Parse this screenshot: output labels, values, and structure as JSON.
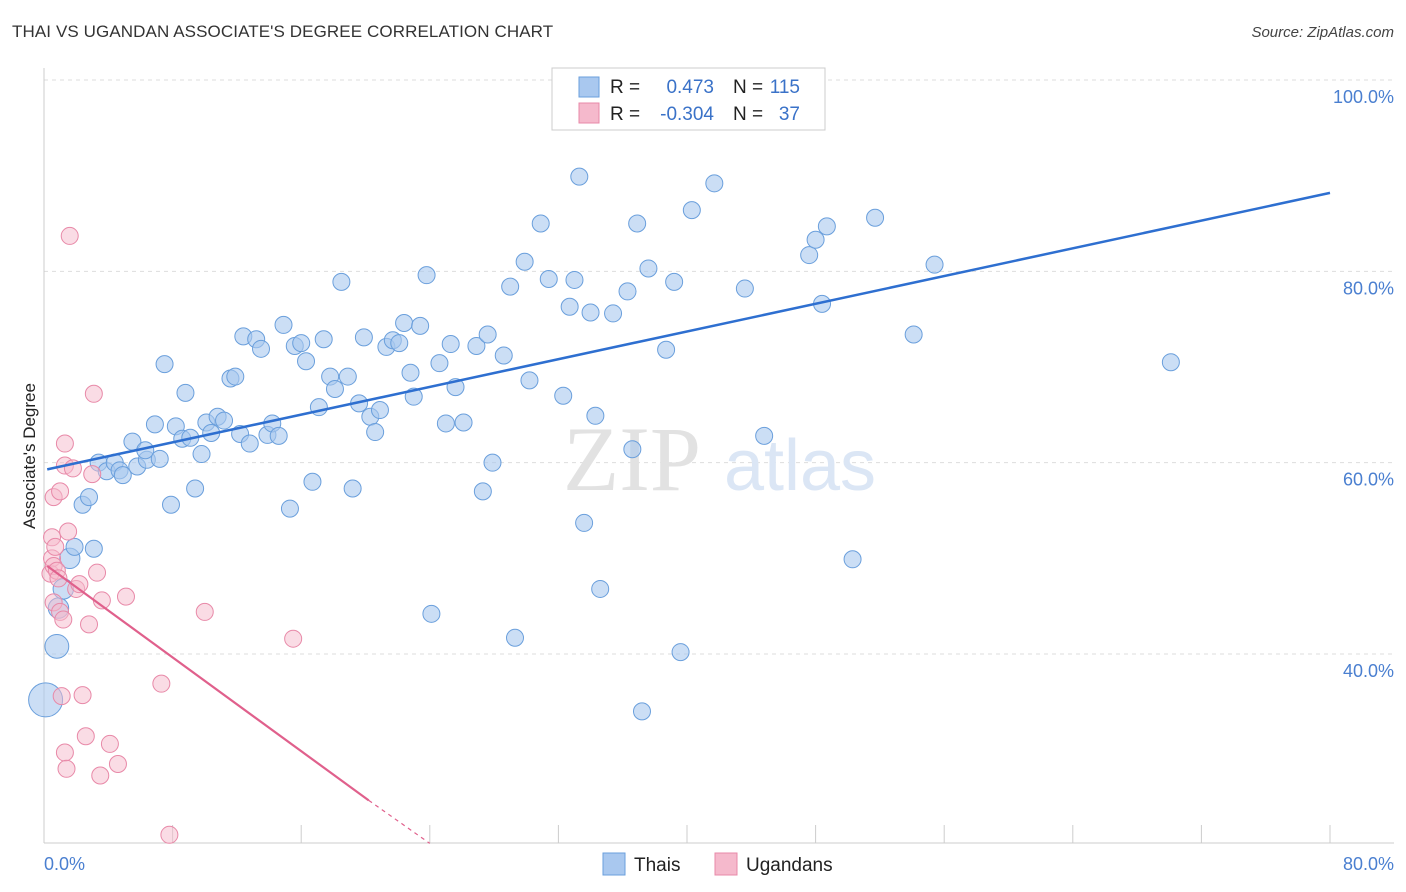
{
  "title": "THAI VS UGANDAN ASSOCIATE'S DEGREE CORRELATION CHART",
  "source": "Source: ZipAtlas.com",
  "watermark": {
    "zip": "ZIP",
    "atlas": "atlas"
  },
  "colors": {
    "thais_fill": "#a9c8ef",
    "thais_stroke": "#6a9fdc",
    "thais_line": "#2e6fd0",
    "ugandans_fill": "#f5b9cc",
    "ugandans_stroke": "#e889a8",
    "ugandans_line": "#e0608c",
    "grid": "#dddddd",
    "axis_label": "#4a7fd0"
  },
  "legend": {
    "row1": {
      "r_label": "R =",
      "r_value": "0.473",
      "n_label": "N =",
      "n_value": "115"
    },
    "row2": {
      "r_label": "R =",
      "r_value": "-0.304",
      "n_label": "N =",
      "n_value": "37"
    }
  },
  "bottom_legend": {
    "thais": "Thais",
    "ugandans": "Ugandans"
  },
  "chart_data": {
    "type": "scatter",
    "title": "THAI VS UGANDAN ASSOCIATE'S DEGREE CORRELATION CHART",
    "xlabel": "",
    "ylabel": "Associate's Degree",
    "xlim": [
      0,
      80
    ],
    "ylim": [
      21,
      102
    ],
    "x_tick_labels": {
      "left": "0.0%",
      "right": "80.0%"
    },
    "y_ticks": [
      {
        "value": 100,
        "label": "100.0%"
      },
      {
        "value": 80,
        "label": "80.0%"
      },
      {
        "value": 60,
        "label": "60.0%"
      },
      {
        "value": 40,
        "label": "40.0%"
      }
    ],
    "series": [
      {
        "name": "Thais",
        "r": 0.473,
        "n": 115,
        "trend": {
          "x": [
            0.2,
            80
          ],
          "y": [
            59.3,
            88.2
          ]
        },
        "points": [
          {
            "x": 0.1,
            "y": 35.2,
            "s": 20
          },
          {
            "x": 0.8,
            "y": 40.8,
            "s": 14
          },
          {
            "x": 0.9,
            "y": 44.8,
            "s": 12
          },
          {
            "x": 1.2,
            "y": 46.8,
            "s": 12
          },
          {
            "x": 1.6,
            "y": 50.0,
            "s": 12
          },
          {
            "x": 1.9,
            "y": 51.2,
            "s": 10
          },
          {
            "x": 3.1,
            "y": 51.0,
            "s": 10
          },
          {
            "x": 2.4,
            "y": 55.6,
            "s": 10
          },
          {
            "x": 2.8,
            "y": 56.4,
            "s": 10
          },
          {
            "x": 3.4,
            "y": 60.0,
            "s": 10
          },
          {
            "x": 3.9,
            "y": 59.1,
            "s": 10
          },
          {
            "x": 4.4,
            "y": 60.0,
            "s": 10
          },
          {
            "x": 4.7,
            "y": 59.2,
            "s": 10
          },
          {
            "x": 4.9,
            "y": 58.7,
            "s": 10
          },
          {
            "x": 5.8,
            "y": 59.6,
            "s": 10
          },
          {
            "x": 6.4,
            "y": 60.3,
            "s": 10
          },
          {
            "x": 5.5,
            "y": 62.2,
            "s": 10
          },
          {
            "x": 6.3,
            "y": 61.3,
            "s": 10
          },
          {
            "x": 6.9,
            "y": 64.0,
            "s": 10
          },
          {
            "x": 7.2,
            "y": 60.4,
            "s": 10
          },
          {
            "x": 7.5,
            "y": 70.3,
            "s": 10
          },
          {
            "x": 7.9,
            "y": 55.6,
            "s": 10
          },
          {
            "x": 8.2,
            "y": 63.8,
            "s": 10
          },
          {
            "x": 8.6,
            "y": 62.5,
            "s": 10
          },
          {
            "x": 8.8,
            "y": 67.3,
            "s": 10
          },
          {
            "x": 9.1,
            "y": 62.6,
            "s": 10
          },
          {
            "x": 9.4,
            "y": 57.3,
            "s": 10
          },
          {
            "x": 9.8,
            "y": 60.9,
            "s": 10
          },
          {
            "x": 10.1,
            "y": 64.2,
            "s": 10
          },
          {
            "x": 10.4,
            "y": 63.1,
            "s": 10
          },
          {
            "x": 10.8,
            "y": 64.8,
            "s": 10
          },
          {
            "x": 11.2,
            "y": 64.4,
            "s": 10
          },
          {
            "x": 11.6,
            "y": 68.8,
            "s": 10
          },
          {
            "x": 11.9,
            "y": 69.0,
            "s": 10
          },
          {
            "x": 12.2,
            "y": 63.0,
            "s": 10
          },
          {
            "x": 12.4,
            "y": 73.2,
            "s": 10
          },
          {
            "x": 12.8,
            "y": 62.0,
            "s": 10
          },
          {
            "x": 13.2,
            "y": 72.9,
            "s": 10
          },
          {
            "x": 13.5,
            "y": 71.9,
            "s": 10
          },
          {
            "x": 13.9,
            "y": 62.9,
            "s": 10
          },
          {
            "x": 14.2,
            "y": 64.1,
            "s": 10
          },
          {
            "x": 14.6,
            "y": 62.8,
            "s": 10
          },
          {
            "x": 14.9,
            "y": 74.4,
            "s": 10
          },
          {
            "x": 15.3,
            "y": 55.2,
            "s": 10
          },
          {
            "x": 15.6,
            "y": 72.2,
            "s": 10
          },
          {
            "x": 16.0,
            "y": 72.5,
            "s": 10
          },
          {
            "x": 16.3,
            "y": 70.6,
            "s": 10
          },
          {
            "x": 16.7,
            "y": 58.0,
            "s": 10
          },
          {
            "x": 17.1,
            "y": 65.8,
            "s": 10
          },
          {
            "x": 17.4,
            "y": 72.9,
            "s": 10
          },
          {
            "x": 17.8,
            "y": 69.0,
            "s": 10
          },
          {
            "x": 18.1,
            "y": 67.7,
            "s": 10
          },
          {
            "x": 18.5,
            "y": 78.9,
            "s": 10
          },
          {
            "x": 18.9,
            "y": 69.0,
            "s": 10
          },
          {
            "x": 19.2,
            "y": 57.3,
            "s": 10
          },
          {
            "x": 19.6,
            "y": 66.2,
            "s": 10
          },
          {
            "x": 19.9,
            "y": 73.1,
            "s": 10
          },
          {
            "x": 20.3,
            "y": 64.8,
            "s": 10
          },
          {
            "x": 20.6,
            "y": 63.2,
            "s": 10
          },
          {
            "x": 20.9,
            "y": 65.5,
            "s": 10
          },
          {
            "x": 21.3,
            "y": 72.1,
            "s": 10
          },
          {
            "x": 21.7,
            "y": 72.8,
            "s": 10
          },
          {
            "x": 22.1,
            "y": 72.5,
            "s": 10
          },
          {
            "x": 22.4,
            "y": 74.6,
            "s": 10
          },
          {
            "x": 22.8,
            "y": 69.4,
            "s": 10
          },
          {
            "x": 23.0,
            "y": 66.9,
            "s": 10
          },
          {
            "x": 23.4,
            "y": 74.3,
            "s": 10
          },
          {
            "x": 23.8,
            "y": 79.6,
            "s": 10
          },
          {
            "x": 24.1,
            "y": 44.2,
            "s": 10
          },
          {
            "x": 24.6,
            "y": 70.4,
            "s": 10
          },
          {
            "x": 25.0,
            "y": 64.1,
            "s": 10
          },
          {
            "x": 25.3,
            "y": 72.4,
            "s": 10
          },
          {
            "x": 25.6,
            "y": 67.9,
            "s": 10
          },
          {
            "x": 26.1,
            "y": 64.2,
            "s": 10
          },
          {
            "x": 26.9,
            "y": 72.2,
            "s": 10
          },
          {
            "x": 27.3,
            "y": 57.0,
            "s": 10
          },
          {
            "x": 27.6,
            "y": 73.4,
            "s": 10
          },
          {
            "x": 27.9,
            "y": 60.0,
            "s": 10
          },
          {
            "x": 28.6,
            "y": 71.2,
            "s": 10
          },
          {
            "x": 29.0,
            "y": 78.4,
            "s": 10
          },
          {
            "x": 29.3,
            "y": 41.7,
            "s": 10
          },
          {
            "x": 29.9,
            "y": 81.0,
            "s": 10
          },
          {
            "x": 30.2,
            "y": 68.6,
            "s": 10
          },
          {
            "x": 30.9,
            "y": 85.0,
            "s": 10
          },
          {
            "x": 31.4,
            "y": 79.2,
            "s": 10
          },
          {
            "x": 32.3,
            "y": 67.0,
            "s": 10
          },
          {
            "x": 32.7,
            "y": 76.3,
            "s": 10
          },
          {
            "x": 33.0,
            "y": 79.1,
            "s": 10
          },
          {
            "x": 33.3,
            "y": 89.9,
            "s": 10
          },
          {
            "x": 33.6,
            "y": 53.7,
            "s": 10
          },
          {
            "x": 34.0,
            "y": 75.7,
            "s": 10
          },
          {
            "x": 34.3,
            "y": 64.9,
            "s": 10
          },
          {
            "x": 34.6,
            "y": 46.8,
            "s": 10
          },
          {
            "x": 35.4,
            "y": 75.6,
            "s": 10
          },
          {
            "x": 36.3,
            "y": 77.9,
            "s": 10
          },
          {
            "x": 36.6,
            "y": 61.4,
            "s": 10
          },
          {
            "x": 36.9,
            "y": 85.0,
            "s": 10
          },
          {
            "x": 37.2,
            "y": 34.0,
            "s": 10
          },
          {
            "x": 37.6,
            "y": 80.3,
            "s": 10
          },
          {
            "x": 38.7,
            "y": 71.8,
            "s": 10
          },
          {
            "x": 39.2,
            "y": 78.9,
            "s": 10
          },
          {
            "x": 39.6,
            "y": 40.2,
            "s": 10
          },
          {
            "x": 40.3,
            "y": 86.4,
            "s": 10
          },
          {
            "x": 41.7,
            "y": 89.2,
            "s": 10
          },
          {
            "x": 43.6,
            "y": 78.2,
            "s": 10
          },
          {
            "x": 44.8,
            "y": 62.8,
            "s": 10
          },
          {
            "x": 47.6,
            "y": 81.7,
            "s": 10
          },
          {
            "x": 48.0,
            "y": 83.3,
            "s": 10
          },
          {
            "x": 48.4,
            "y": 76.6,
            "s": 10
          },
          {
            "x": 48.7,
            "y": 84.7,
            "s": 10
          },
          {
            "x": 50.3,
            "y": 49.9,
            "s": 10
          },
          {
            "x": 51.7,
            "y": 85.6,
            "s": 10
          },
          {
            "x": 54.1,
            "y": 73.4,
            "s": 10
          },
          {
            "x": 55.4,
            "y": 80.7,
            "s": 10
          },
          {
            "x": 70.1,
            "y": 70.5,
            "s": 10
          }
        ]
      },
      {
        "name": "Ugandans",
        "r": -0.304,
        "n": 37,
        "trend": {
          "x": [
            0.2,
            20.2
          ],
          "y": [
            49.2,
            24.7
          ]
        },
        "trend_dashed": {
          "x": [
            20.2,
            24.0
          ],
          "y": [
            24.7,
            20.2
          ]
        },
        "points": [
          {
            "x": 0.4,
            "y": 48.4,
            "s": 10
          },
          {
            "x": 0.5,
            "y": 50.0,
            "s": 10
          },
          {
            "x": 0.5,
            "y": 52.2,
            "s": 10
          },
          {
            "x": 0.6,
            "y": 49.2,
            "s": 10
          },
          {
            "x": 0.6,
            "y": 45.4,
            "s": 10
          },
          {
            "x": 0.6,
            "y": 56.4,
            "s": 10
          },
          {
            "x": 0.7,
            "y": 51.2,
            "s": 10
          },
          {
            "x": 0.8,
            "y": 48.7,
            "s": 10
          },
          {
            "x": 0.9,
            "y": 47.9,
            "s": 10
          },
          {
            "x": 1.0,
            "y": 57.0,
            "s": 10
          },
          {
            "x": 1.0,
            "y": 44.4,
            "s": 10
          },
          {
            "x": 1.1,
            "y": 35.6,
            "s": 10
          },
          {
            "x": 1.2,
            "y": 43.6,
            "s": 10
          },
          {
            "x": 1.3,
            "y": 59.7,
            "s": 10
          },
          {
            "x": 1.3,
            "y": 62.0,
            "s": 10
          },
          {
            "x": 1.3,
            "y": 29.7,
            "s": 10
          },
          {
            "x": 1.4,
            "y": 28.0,
            "s": 10
          },
          {
            "x": 1.5,
            "y": 52.8,
            "s": 10
          },
          {
            "x": 1.6,
            "y": 83.7,
            "s": 10
          },
          {
            "x": 1.8,
            "y": 59.4,
            "s": 10
          },
          {
            "x": 2.0,
            "y": 46.8,
            "s": 10
          },
          {
            "x": 2.2,
            "y": 47.3,
            "s": 10
          },
          {
            "x": 2.4,
            "y": 35.7,
            "s": 10
          },
          {
            "x": 2.6,
            "y": 31.4,
            "s": 10
          },
          {
            "x": 2.8,
            "y": 43.1,
            "s": 10
          },
          {
            "x": 3.0,
            "y": 58.8,
            "s": 10
          },
          {
            "x": 3.1,
            "y": 67.2,
            "s": 10
          },
          {
            "x": 3.3,
            "y": 48.5,
            "s": 10
          },
          {
            "x": 3.5,
            "y": 27.3,
            "s": 10
          },
          {
            "x": 3.6,
            "y": 45.6,
            "s": 10
          },
          {
            "x": 4.1,
            "y": 30.6,
            "s": 10
          },
          {
            "x": 4.6,
            "y": 28.5,
            "s": 10
          },
          {
            "x": 5.1,
            "y": 46.0,
            "s": 10
          },
          {
            "x": 7.3,
            "y": 36.9,
            "s": 10
          },
          {
            "x": 7.8,
            "y": 21.1,
            "s": 10
          },
          {
            "x": 10.0,
            "y": 44.4,
            "s": 10
          },
          {
            "x": 15.5,
            "y": 41.6,
            "s": 10
          }
        ]
      }
    ]
  }
}
